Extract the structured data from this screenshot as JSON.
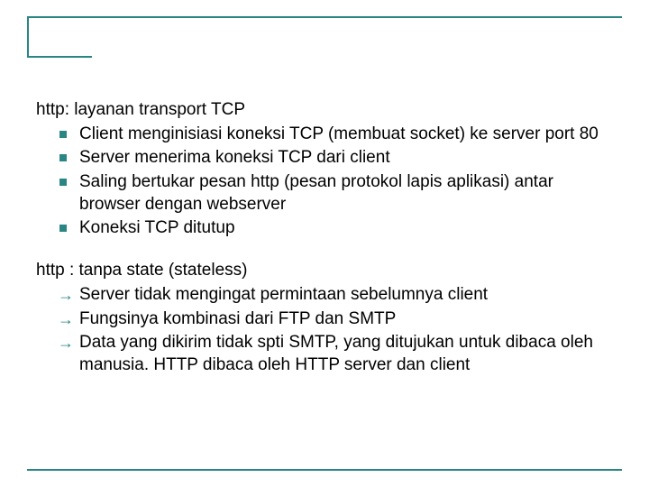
{
  "accent_color": "#2a8585",
  "text_color": "#000000",
  "background": "#ffffff",
  "font_family": "Arial",
  "body_fontsize_pt": 14,
  "section1": {
    "heading": "http: layanan transport TCP",
    "bullet": "square",
    "items": [
      "Client menginisiasi koneksi TCP (membuat socket) ke server port 80",
      "Server menerima koneksi TCP dari client",
      "Saling bertukar pesan http (pesan protokol lapis aplikasi) antar browser dengan webserver",
      "Koneksi TCP ditutup"
    ]
  },
  "section2": {
    "heading": "http : tanpa state (stateless)",
    "bullet": "arrow",
    "items": [
      "Server tidak mengingat permintaan sebelumnya client",
      "Fungsinya kombinasi dari FTP dan SMTP",
      "Data yang dikirim tidak spti SMTP, yang ditujukan untuk dibaca oleh manusia. HTTP dibaca oleh HTTP server dan client"
    ]
  }
}
